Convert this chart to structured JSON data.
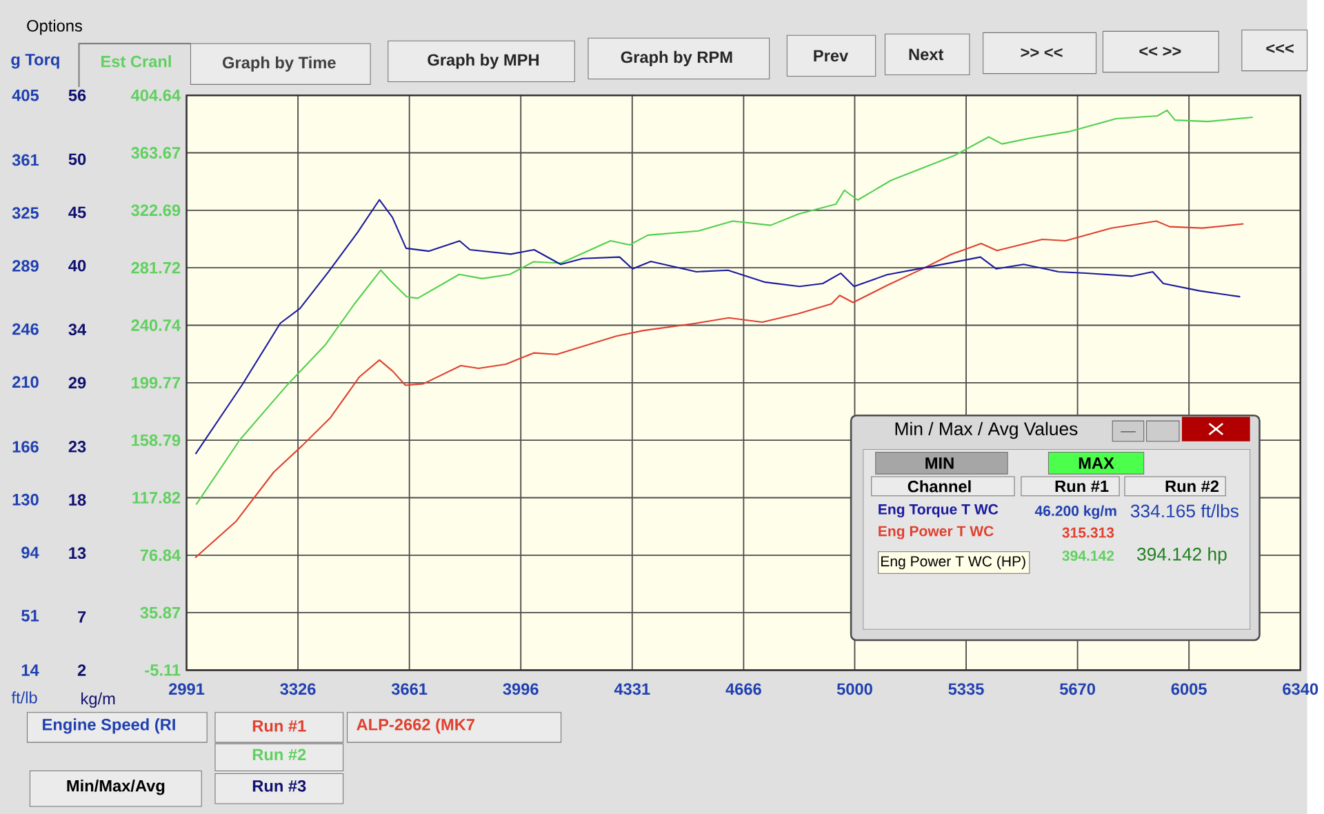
{
  "chart_data": {
    "type": "line",
    "ylabel": "Est Cranl",
    "y2label": "ft/lb",
    "y3label": "kg/m",
    "xlim": [
      2991,
      6340
    ],
    "xticks": [
      2991,
      3326,
      3661,
      3996,
      4331,
      4666,
      5000,
      5335,
      5670,
      6005,
      6340
    ],
    "ylim": [
      -5.11,
      404.64
    ],
    "yticks": [
      -5.11,
      35.87,
      76.84,
      117.82,
      158.79,
      199.77,
      240.74,
      281.72,
      322.69,
      363.67,
      404.64
    ],
    "y2lim": [
      14,
      405
    ],
    "y2ticks": [
      14,
      51,
      94,
      130,
      166,
      210,
      246,
      289,
      325,
      361,
      405
    ],
    "y3lim": [
      2,
      56
    ],
    "y3ticks": [
      2,
      7,
      13,
      18,
      23,
      29,
      34,
      40,
      45,
      50,
      56
    ],
    "grid": true,
    "series": [
      {
        "name": "Eng Torque T WC",
        "color": "#1a1aa0",
        "axis": "y2",
        "x": [
          3018,
          3158,
          3273,
          3332,
          3418,
          3506,
          3571,
          3610,
          3651,
          3720,
          3812,
          3843,
          3966,
          4036,
          4116,
          4182,
          4293,
          4332,
          4387,
          4524,
          4619,
          4728,
          4834,
          4904,
          4958,
          4998,
          5097,
          5287,
          5378,
          5425,
          5508,
          5613,
          5695,
          5834,
          5896,
          5928,
          6037,
          6159
        ],
        "values": [
          161,
          208,
          250,
          260,
          285,
          312,
          334,
          322,
          301,
          299,
          306,
          300,
          297,
          300,
          290,
          294,
          295,
          287,
          292,
          285,
          286,
          278,
          275,
          277,
          284,
          275,
          283,
          291,
          295,
          287,
          290,
          285,
          284,
          282,
          285,
          277,
          272,
          268
        ]
      },
      {
        "name": "Eng Power T WC",
        "color": "#e04030",
        "axis": "y",
        "x": [
          3017,
          3140,
          3253,
          3339,
          3424,
          3511,
          3571,
          3611,
          3649,
          3703,
          3816,
          3869,
          3951,
          4035,
          4104,
          4283,
          4365,
          4518,
          4621,
          4722,
          4830,
          4930,
          4955,
          4995,
          5096,
          5204,
          5288,
          5380,
          5428,
          5564,
          5634,
          5771,
          5907,
          5947,
          6045,
          6169
        ],
        "values": [
          75,
          101,
          136,
          155,
          175,
          204,
          216,
          208,
          198,
          199,
          212,
          210,
          213,
          221,
          220,
          233,
          237,
          242,
          246,
          243,
          249,
          256,
          262,
          257,
          269,
          281,
          291,
          299,
          294,
          302,
          301,
          310,
          315,
          311,
          310,
          313
        ]
      },
      {
        "color": "#50d050",
        "axis": "y",
        "x": [
          3020,
          3151,
          3293,
          3409,
          3496,
          3575,
          3606,
          3653,
          3686,
          3811,
          3880,
          3963,
          4034,
          4116,
          4266,
          4323,
          4378,
          4530,
          4633,
          4747,
          4831,
          4943,
          4969,
          5009,
          5109,
          5302,
          5403,
          5443,
          5525,
          5649,
          5786,
          5910,
          5939,
          5963,
          6062,
          6197
        ],
        "values": [
          113,
          159,
          198,
          227,
          256,
          280,
          272,
          261,
          260,
          277,
          274,
          277,
          286,
          285,
          301,
          298,
          305,
          308,
          315,
          312,
          320,
          327,
          337,
          330,
          344,
          362,
          375,
          370,
          374,
          379,
          388,
          390,
          394,
          387,
          386,
          389
        ]
      }
    ],
    "annotations": [
      "Options",
      "Graph by Time",
      "Graph by MPH",
      "Graph by RPM",
      "Prev",
      "Next",
      ">> <<",
      "<< >>",
      "<<<",
      "g Torq",
      "Engine Speed (RI",
      "Run #1",
      "ALP-2662 (MK7",
      "Run #2",
      "Run #3",
      "Min/Max/Avg",
      "Min / Max / Avg Values",
      "MIN",
      "MAX",
      "Channel",
      "Run #1",
      "Run #2",
      "46.200 kg/m",
      "334.165 ft/lbs",
      "315.313",
      "394.142",
      "Eng Power T WC (HP)",
      "394.142 hp"
    ]
  }
}
